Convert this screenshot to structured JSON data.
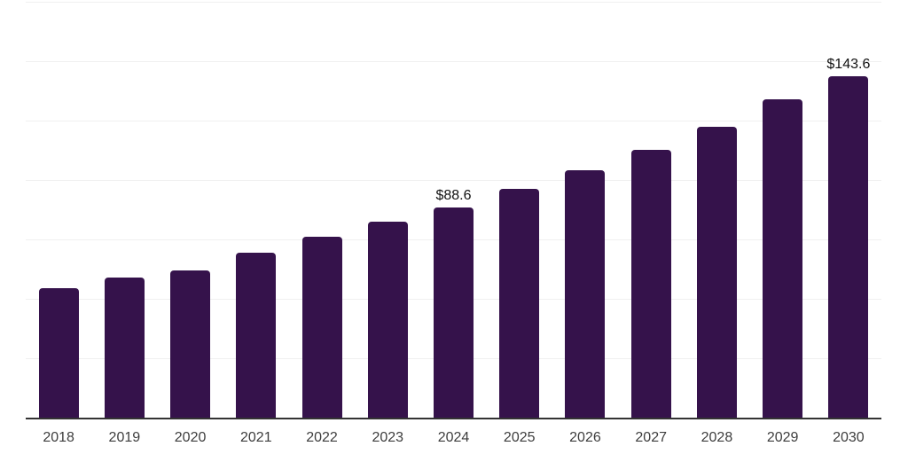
{
  "chart_data": {
    "type": "bar",
    "title": "",
    "xlabel": "",
    "ylabel": "",
    "categories": [
      "2018",
      "2019",
      "2020",
      "2021",
      "2022",
      "2023",
      "2024",
      "2025",
      "2026",
      "2027",
      "2028",
      "2029",
      "2030"
    ],
    "values": [
      54.3,
      59.0,
      62.1,
      69.4,
      76.1,
      82.3,
      88.6,
      96.3,
      104.1,
      112.7,
      122.4,
      133.8,
      143.6
    ],
    "data_labels": {
      "2024": "$88.6",
      "2030": "$143.6"
    },
    "ylim": [
      0,
      175
    ],
    "gridline_step": 25,
    "grid": "horizontal",
    "legend": "none",
    "colors": {
      "bar": "#35124B",
      "axis_line": "#333333",
      "gridline": "#F0F0F0",
      "tick_label": "#3D3D3D",
      "value_label": "#111111",
      "background": "#FFFFFF"
    }
  }
}
